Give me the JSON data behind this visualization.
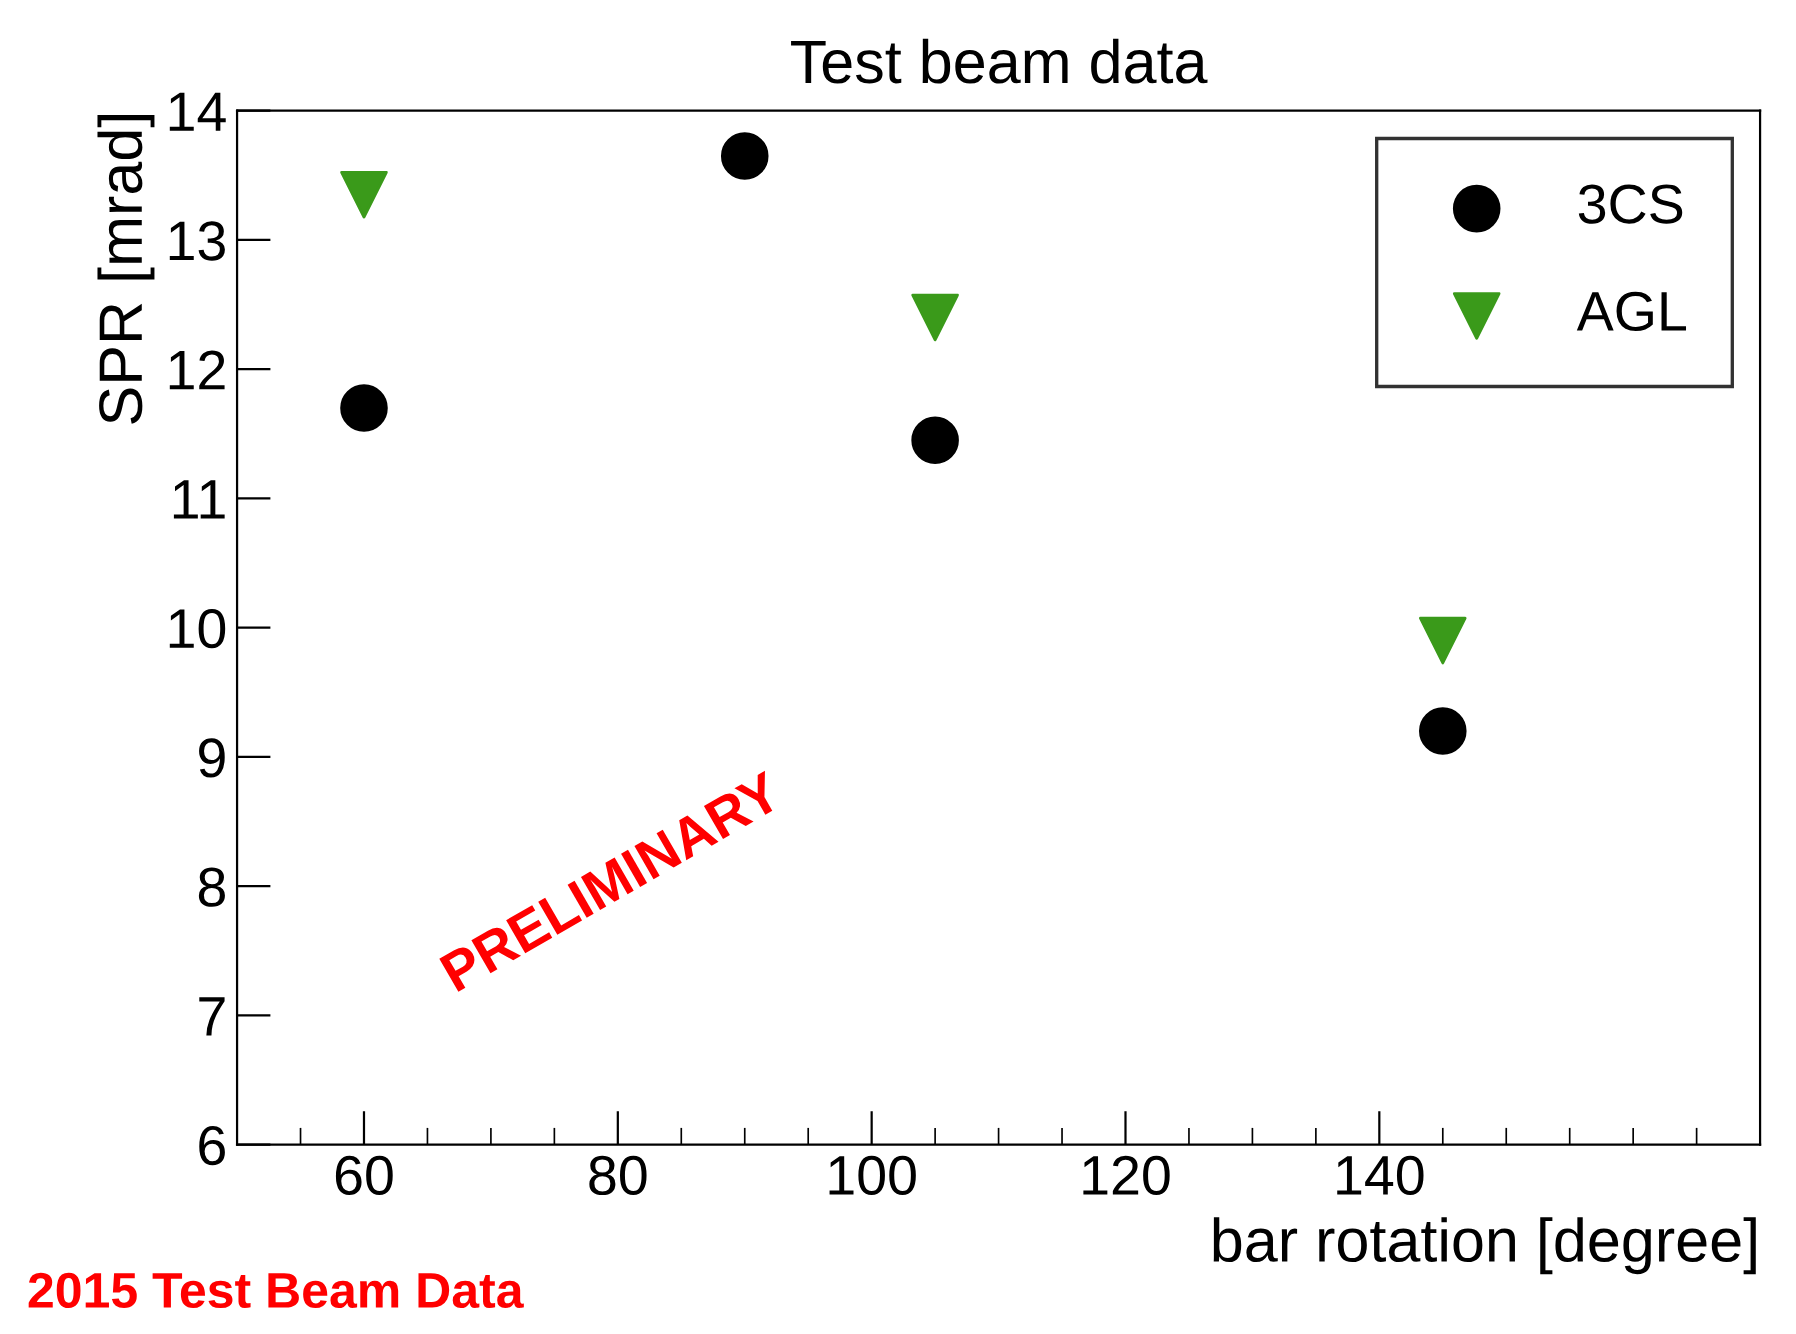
{
  "chart_data": {
    "type": "scatter",
    "title": "Test beam data",
    "xlabel": "bar rotation [degree]",
    "ylabel": "SPR [mrad]",
    "xlim": [
      50,
      170
    ],
    "xticks": [
      60,
      80,
      100,
      120,
      140
    ],
    "ylim": [
      6,
      14
    ],
    "yticks": [
      6,
      7,
      8,
      9,
      10,
      11,
      12,
      13,
      14
    ],
    "grid": false,
    "legend": "top right",
    "series": [
      {
        "name": "3CS",
        "color": "#000000",
        "marker": "circle",
        "x": [
          60,
          90,
          105,
          145
        ],
        "values": [
          11.7,
          13.65,
          11.45,
          9.2
        ]
      },
      {
        "name": "AGL",
        "color": "#3a9a1a",
        "marker": "triangle",
        "x": [
          60,
          105,
          145
        ],
        "values": [
          13.35,
          12.4,
          9.9
        ]
      }
    ],
    "annotations": [
      "PRELIMINARY",
      "2015 Test Beam Data"
    ]
  }
}
